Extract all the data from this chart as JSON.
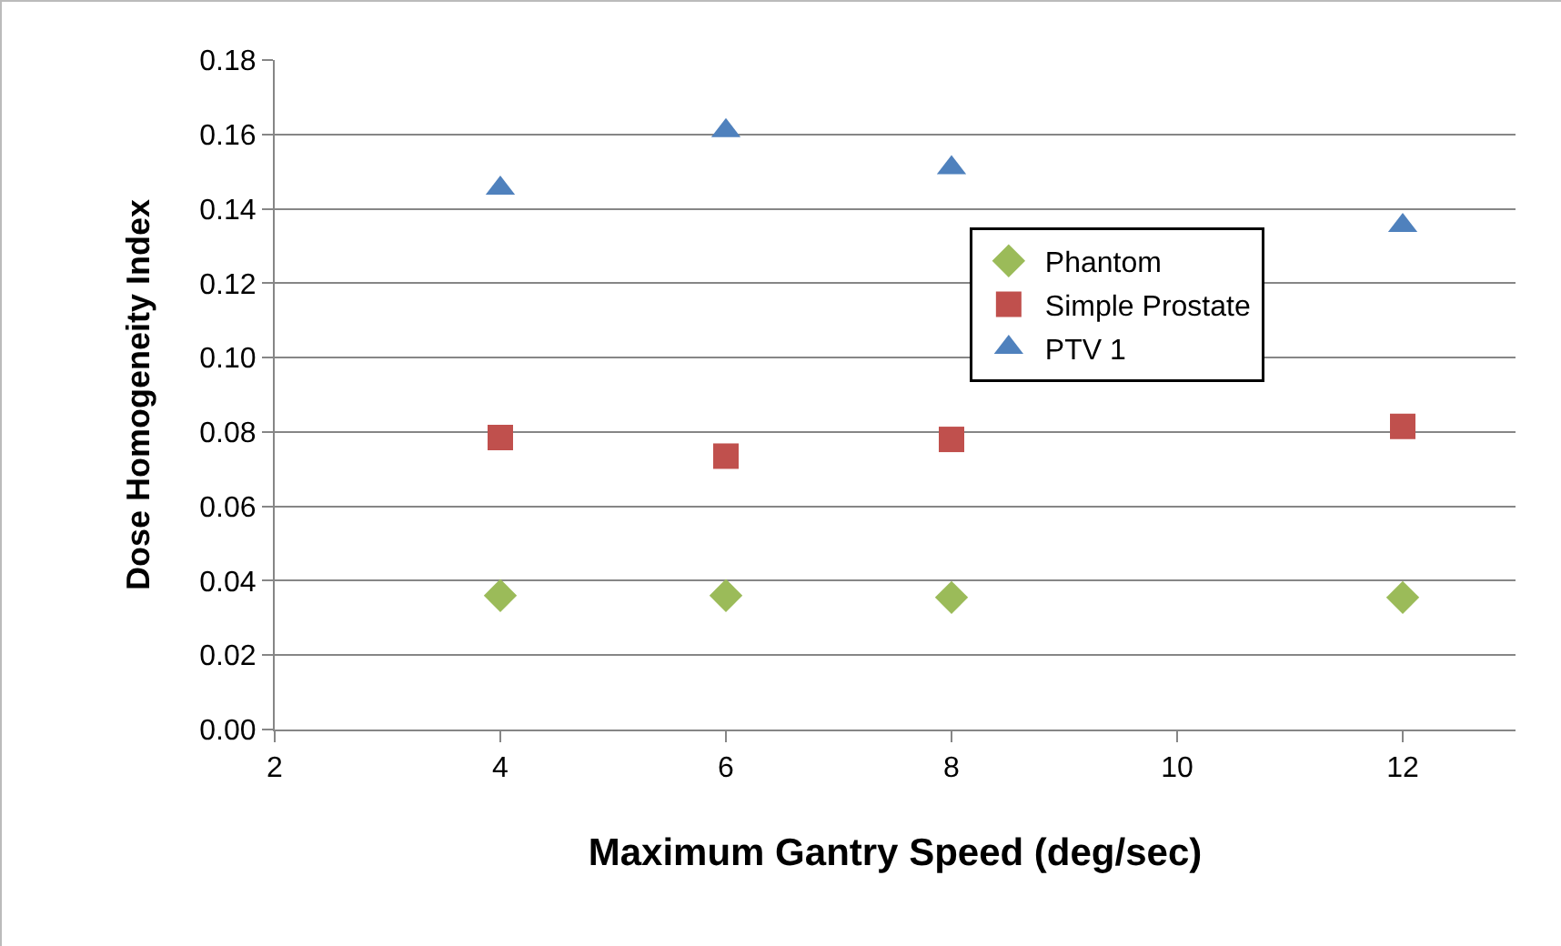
{
  "chart_data": {
    "type": "scatter",
    "xlabel": "Maximum Gantry Speed (deg/sec)",
    "ylabel": "Dose Homogeneity Index",
    "x": [
      4,
      6,
      8,
      12
    ],
    "series": [
      {
        "name": "Phantom",
        "color": "#9bbb59",
        "marker": "diamond",
        "values": [
          0.036,
          0.036,
          0.0355,
          0.0355
        ]
      },
      {
        "name": "Simple Prostate",
        "color": "#c0504d",
        "marker": "square",
        "values": [
          0.0785,
          0.0735,
          0.078,
          0.0815
        ]
      },
      {
        "name": "PTV 1",
        "color": "#4f81bd",
        "marker": "triangle",
        "values": [
          0.1455,
          0.161,
          0.151,
          0.1355
        ]
      }
    ],
    "xlim": [
      2,
      13
    ],
    "xticks": [
      2,
      4,
      6,
      8,
      10,
      12
    ],
    "ylim": [
      0,
      0.18
    ],
    "yticks": [
      {
        "value": 0,
        "label": "0.00"
      },
      {
        "value": 0.02,
        "label": "0.02"
      },
      {
        "value": 0.04,
        "label": "0.04"
      },
      {
        "value": 0.06,
        "label": "0.06"
      },
      {
        "value": 0.08,
        "label": "0.08"
      },
      {
        "value": 0.1,
        "label": "0.10"
      },
      {
        "value": 0.12,
        "label": "0.12"
      },
      {
        "value": 0.14,
        "label": "0.14"
      },
      {
        "value": 0.16,
        "label": "0.16"
      },
      {
        "value": 0.18,
        "label": "0.18"
      }
    ],
    "grid": "y",
    "legend": "right"
  }
}
